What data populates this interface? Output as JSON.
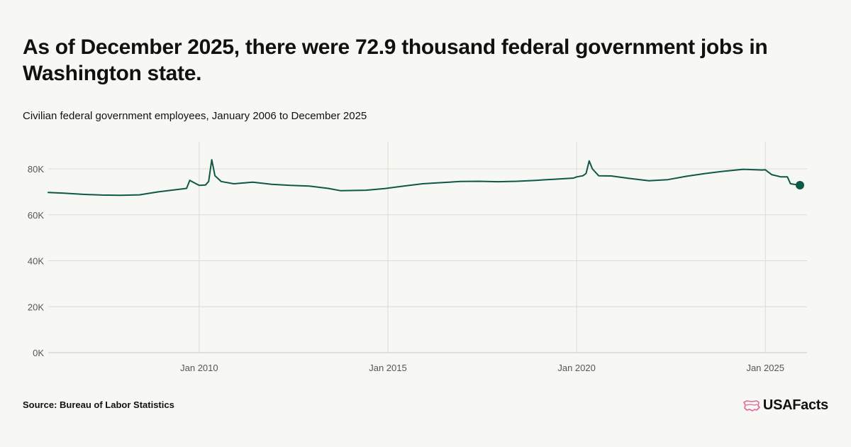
{
  "header": {
    "title": "As of December 2025, there were 72.9 thousand federal government jobs in Washington state.",
    "subtitle": "Civilian federal government employees, January 2006 to December 2025"
  },
  "footer": {
    "source": "Source: Bureau of Labor Statistics",
    "brand": "USAFacts"
  },
  "colors": {
    "line": "#0d5846",
    "grid": "#dcdcd6",
    "brand_accent": "#e0679a"
  },
  "chart_data": {
    "type": "line",
    "title": "As of December 2025, there were 72.9 thousand federal government jobs in Washington state.",
    "subtitle": "Civilian federal government employees, January 2006 to December 2025",
    "xlabel": "",
    "ylabel": "",
    "x_range": [
      "2006-01",
      "2025-12"
    ],
    "ylim": [
      0,
      80000
    ],
    "yticks": [
      0,
      20000,
      40000,
      60000,
      80000
    ],
    "ytick_labels": [
      "0K",
      "20K",
      "40K",
      "60K",
      "80K"
    ],
    "xtick_labels": [
      "Jan 2010",
      "Jan 2015",
      "Jan 2020",
      "Jan 2025"
    ],
    "xtick_dates": [
      "2010-01",
      "2015-01",
      "2020-01",
      "2025-01"
    ],
    "grid": true,
    "legend": "none",
    "highlight_last_point": true,
    "series": [
      {
        "points": [
          [
            "2006-01",
            69700
          ],
          [
            "2006-06",
            69400
          ],
          [
            "2006-12",
            68900
          ],
          [
            "2007-06",
            68600
          ],
          [
            "2007-12",
            68500
          ],
          [
            "2008-06",
            68700
          ],
          [
            "2008-12",
            70000
          ],
          [
            "2009-06",
            71000
          ],
          [
            "2009-09",
            71500
          ],
          [
            "2009-10",
            75000
          ],
          [
            "2009-12",
            73500
          ],
          [
            "2010-01",
            72800
          ],
          [
            "2010-03",
            73000
          ],
          [
            "2010-04",
            74500
          ],
          [
            "2010-05",
            84000
          ],
          [
            "2010-06",
            77000
          ],
          [
            "2010-08",
            74500
          ],
          [
            "2010-12",
            73500
          ],
          [
            "2011-06",
            74200
          ],
          [
            "2011-12",
            73300
          ],
          [
            "2012-06",
            72800
          ],
          [
            "2012-12",
            72500
          ],
          [
            "2013-06",
            71500
          ],
          [
            "2013-10",
            70500
          ],
          [
            "2014-06",
            70700
          ],
          [
            "2014-12",
            71400
          ],
          [
            "2015-06",
            72500
          ],
          [
            "2015-12",
            73500
          ],
          [
            "2016-06",
            74000
          ],
          [
            "2016-12",
            74500
          ],
          [
            "2017-06",
            74600
          ],
          [
            "2017-12",
            74400
          ],
          [
            "2018-06",
            74600
          ],
          [
            "2018-12",
            75000
          ],
          [
            "2019-06",
            75500
          ],
          [
            "2019-12",
            76000
          ],
          [
            "2020-01",
            76500
          ],
          [
            "2020-03",
            77000
          ],
          [
            "2020-04",
            78000
          ],
          [
            "2020-05",
            83500
          ],
          [
            "2020-06",
            80000
          ],
          [
            "2020-08",
            77000
          ],
          [
            "2020-12",
            76900
          ],
          [
            "2021-06",
            75800
          ],
          [
            "2021-12",
            74800
          ],
          [
            "2022-06",
            75300
          ],
          [
            "2022-12",
            76800
          ],
          [
            "2023-06",
            78000
          ],
          [
            "2023-12",
            79000
          ],
          [
            "2024-06",
            79800
          ],
          [
            "2024-12",
            79500
          ],
          [
            "2025-01",
            79600
          ],
          [
            "2025-03",
            77500
          ],
          [
            "2025-06",
            76500
          ],
          [
            "2025-08",
            76500
          ],
          [
            "2025-09",
            73500
          ],
          [
            "2025-12",
            72900
          ]
        ]
      }
    ]
  }
}
